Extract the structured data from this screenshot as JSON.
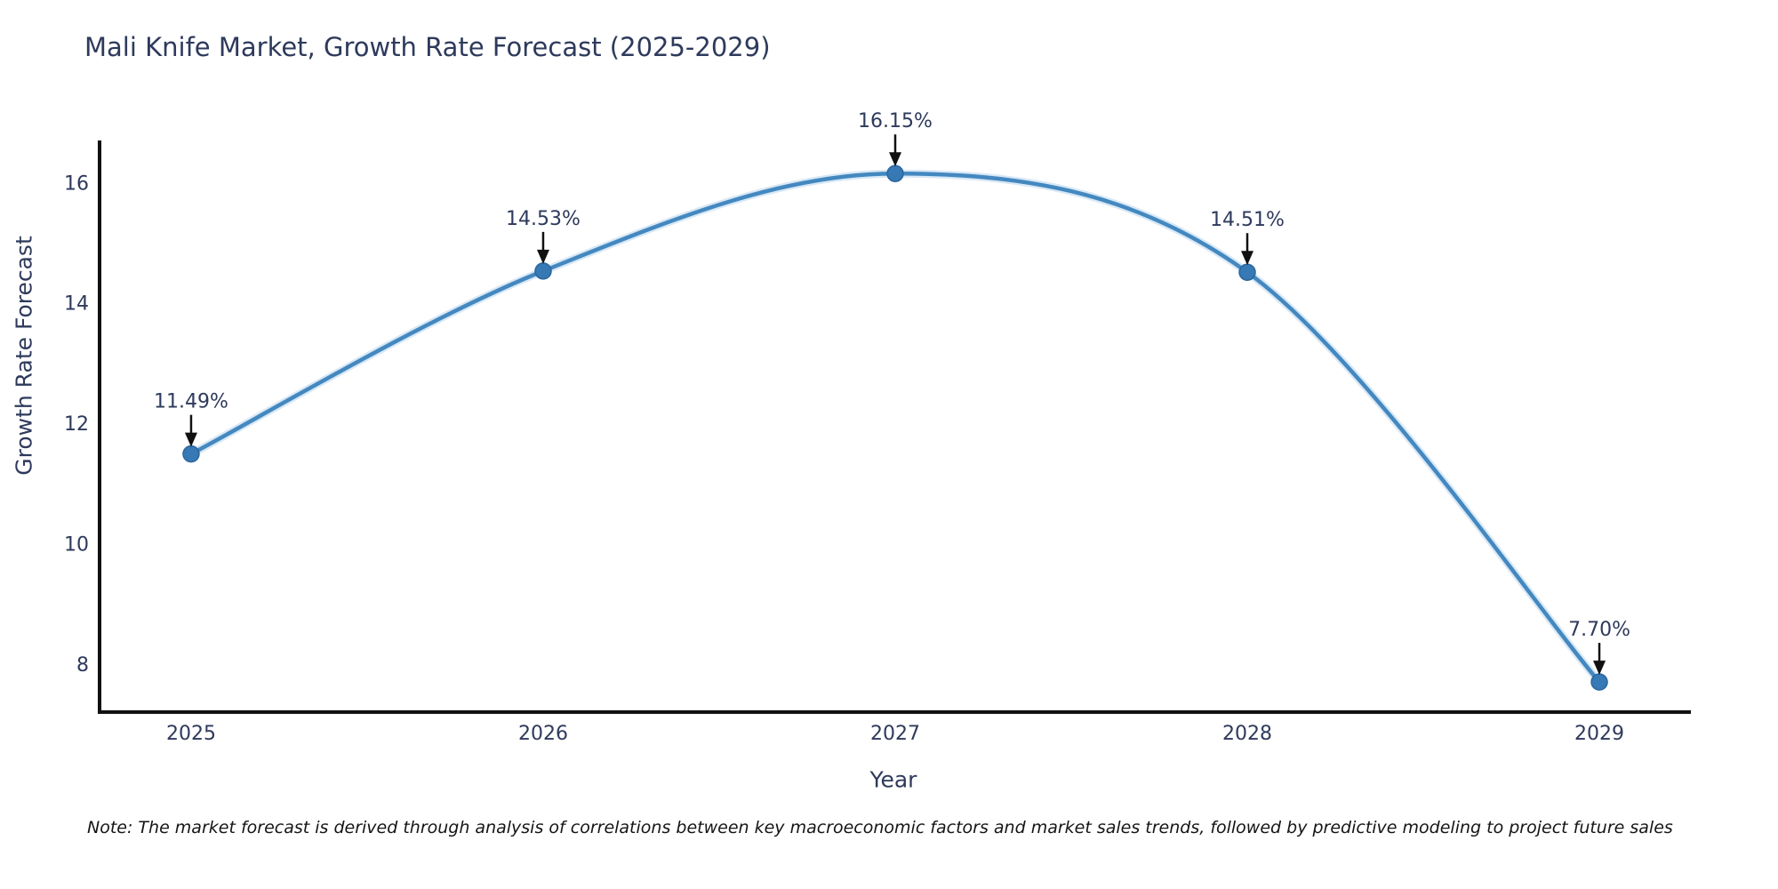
{
  "chart_data": {
    "type": "line",
    "title": "Mali Knife Market, Growth Rate Forecast (2025-2029)",
    "xlabel": "Year",
    "ylabel": "Growth Rate Forecast",
    "x": [
      2025,
      2026,
      2027,
      2028,
      2029
    ],
    "series": [
      {
        "name": "Growth Rate Forecast",
        "values": [
          11.49,
          14.53,
          16.15,
          14.51,
          7.7
        ]
      }
    ],
    "point_labels": [
      "11.49%",
      "14.53%",
      "16.15%",
      "14.51%",
      "7.70%"
    ],
    "yticks": [
      8,
      10,
      12,
      14,
      16
    ],
    "xticks": [
      "2025",
      "2026",
      "2027",
      "2028",
      "2029"
    ],
    "ylim": [
      7.2,
      16.7
    ],
    "xlim": [
      2024.74,
      2029.26
    ],
    "grid": false,
    "legend_position": "none",
    "line_shape": "spline",
    "note": "Note: The market forecast is derived through analysis of correlations between key macroeconomic factors and market sales trends, followed by predictive modeling to project future sales",
    "colors": {
      "line": "#4488c0",
      "line_halo": "#a8cdea",
      "marker": "#3679b4",
      "marker_edge": "#2c669e",
      "axis": "#111111",
      "text": "#2e3a5c",
      "arrow": "#111111"
    }
  }
}
